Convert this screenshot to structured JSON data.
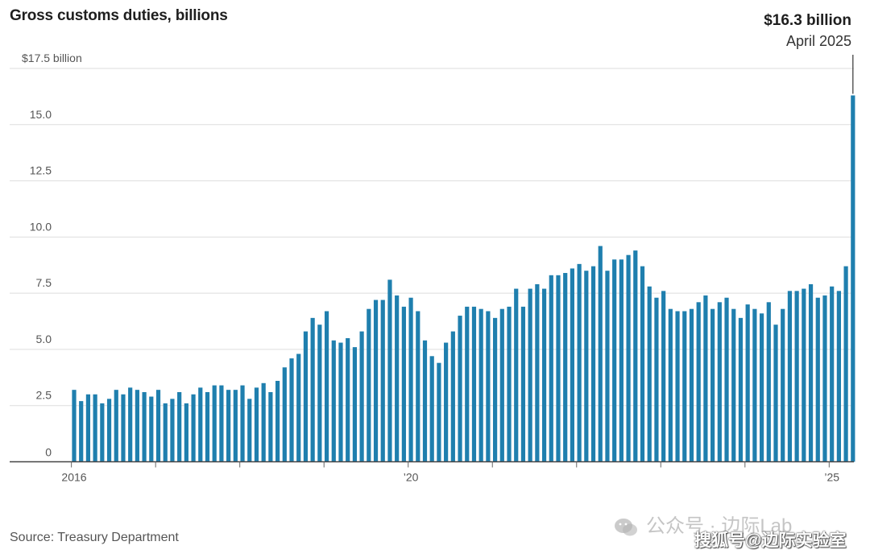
{
  "title": "Gross customs duties, billions",
  "source": "Source: Treasury Department",
  "annotation": {
    "value": "$16.3 billion",
    "date": "April 2025"
  },
  "watermark": {
    "line1": "公众号 · 边际Lab",
    "line2": "搜狐号@边际实验室"
  },
  "colors": {
    "bar": "#1f7fae",
    "grid": "#dddddd",
    "axis": "#444444"
  },
  "chart_data": {
    "type": "bar",
    "title": "Gross customs duties, billions",
    "xlabel": "",
    "ylabel": "",
    "ylim": [
      0,
      17.5
    ],
    "yticks": [
      {
        "value": 0,
        "label": "0"
      },
      {
        "value": 2.5,
        "label": "2.5"
      },
      {
        "value": 5.0,
        "label": "5.0"
      },
      {
        "value": 7.5,
        "label": "7.5"
      },
      {
        "value": 10.0,
        "label": "10.0"
      },
      {
        "value": 12.5,
        "label": "12.5"
      },
      {
        "value": 15.0,
        "label": "15.0"
      },
      {
        "value": 17.5,
        "label": "$17.5 billion"
      }
    ],
    "xticks": [
      {
        "month_index": 0,
        "label": "2016"
      },
      {
        "month_index": 48,
        "label": "’20"
      },
      {
        "month_index": 108,
        "label": "’25"
      }
    ],
    "start": "2016-01",
    "end": "2025-04",
    "grid": true,
    "values": [
      3.2,
      2.7,
      3.0,
      3.0,
      2.6,
      2.8,
      3.2,
      3.0,
      3.3,
      3.2,
      3.1,
      2.9,
      3.2,
      2.6,
      2.8,
      3.1,
      2.6,
      3.0,
      3.3,
      3.1,
      3.4,
      3.4,
      3.2,
      3.2,
      3.4,
      2.8,
      3.3,
      3.5,
      3.1,
      3.6,
      4.2,
      4.6,
      4.8,
      5.8,
      6.4,
      6.1,
      6.7,
      5.4,
      5.3,
      5.5,
      5.1,
      5.8,
      6.8,
      7.2,
      7.2,
      8.1,
      7.4,
      6.9,
      7.3,
      6.7,
      5.4,
      4.7,
      4.4,
      5.3,
      5.8,
      6.5,
      6.9,
      6.9,
      6.8,
      6.7,
      6.4,
      6.8,
      6.9,
      7.7,
      6.9,
      7.7,
      7.9,
      7.7,
      8.3,
      8.3,
      8.4,
      8.6,
      8.8,
      8.5,
      8.7,
      9.6,
      8.5,
      9.0,
      9.0,
      9.2,
      9.4,
      8.7,
      7.8,
      7.3,
      7.6,
      6.8,
      6.7,
      6.7,
      6.8,
      7.1,
      7.4,
      6.8,
      7.1,
      7.3,
      6.8,
      6.4,
      7.0,
      6.8,
      6.6,
      7.1,
      6.1,
      6.8,
      7.6,
      7.6,
      7.7,
      7.9,
      7.3,
      7.4,
      7.8,
      7.6,
      8.7,
      16.3
    ]
  }
}
